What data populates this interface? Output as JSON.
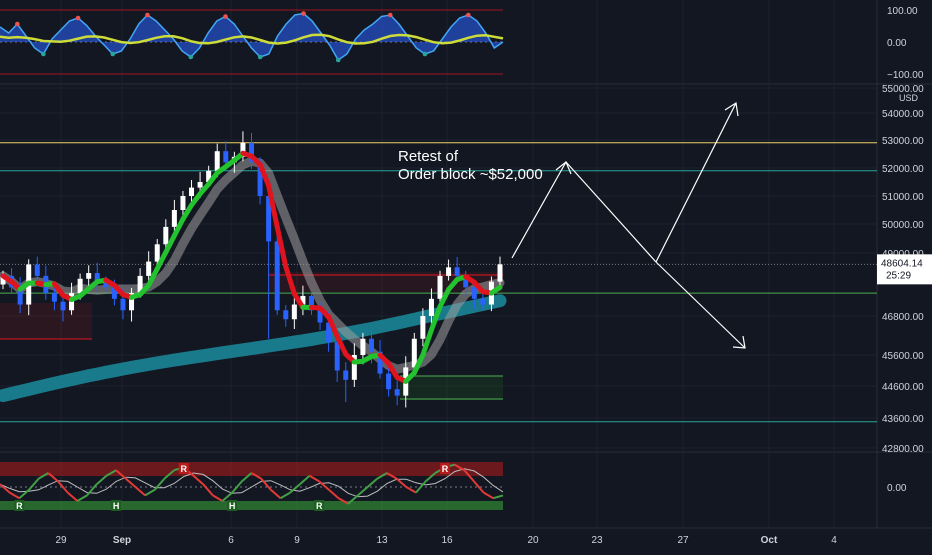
{
  "colors": {
    "background": "#131722",
    "up_candle": "#ffffff",
    "down_candle": "#2962ff",
    "resistance_line": "#f0d264",
    "teal_line": "#26a69a",
    "green_line": "#4caf50",
    "red_zone": "#b71c1c",
    "ribbon_green": "#22c32e",
    "ribbon_red": "#e0141e",
    "baseline_ribbon": "#1a8c9c",
    "price_tag_bg": "#ffffff"
  },
  "chart_data": [
    {
      "type": "area",
      "panel": "top-oscillator",
      "y_ticks": [
        "100.00",
        "0.00",
        "−100.00"
      ],
      "ylim": [
        -100,
        100
      ],
      "series_values": [
        50,
        30,
        60,
        20,
        -20,
        -40,
        10,
        40,
        70,
        80,
        55,
        20,
        -10,
        -40,
        -30,
        10,
        60,
        90,
        70,
        40,
        10,
        -30,
        -50,
        -20,
        30,
        70,
        85,
        60,
        20,
        -20,
        -50,
        -40,
        20,
        60,
        90,
        95,
        70,
        30,
        -10,
        -60,
        -40,
        10,
        40,
        60,
        85,
        90,
        60,
        20,
        -20,
        -40,
        -30,
        10,
        50,
        80,
        90,
        70,
        30,
        -20,
        0
      ]
    },
    {
      "type": "candlestick",
      "panel": "price",
      "unit": "USD",
      "y_ticks": [
        "55000.00",
        "54000.00",
        "53000.00",
        "52000.00",
        "51000.00",
        "50000.00",
        "49000.00",
        "46800.00",
        "45600.00",
        "44600.00",
        "43600.00",
        "42800.00"
      ],
      "ylim": [
        42800,
        55000
      ],
      "x_ticks": [
        "29",
        "Sep",
        "6",
        "9",
        "13",
        "16",
        "20",
        "23",
        "27",
        "Oct",
        "4"
      ],
      "last_price": "48604.14",
      "countdown": "25:29",
      "annotation": [
        "Retest of",
        "Order block ~$52,000"
      ],
      "resistance_level": 52900,
      "teal_level": 51900,
      "green_level": 47600,
      "support_level": 43500,
      "closes": [
        48200,
        47800,
        47200,
        48600,
        48200,
        47600,
        47300,
        47000,
        47600,
        48100,
        48300,
        48000,
        47800,
        47400,
        47000,
        47600,
        48200,
        48700,
        49300,
        49900,
        50500,
        51000,
        51300,
        51500,
        51900,
        52600,
        52200,
        52400,
        52900,
        52200,
        51000,
        49400,
        47000,
        46700,
        47200,
        47500,
        47000,
        46600,
        46000,
        45100,
        44800,
        45600,
        46100,
        45700,
        45000,
        44500,
        44300,
        45200,
        46100,
        46800,
        47400,
        48200,
        48500,
        48200,
        47800,
        47400,
        47200,
        48000,
        48604
      ]
    },
    {
      "type": "line",
      "panel": "bottom-oscillator",
      "y_ticks": [
        "0.00"
      ],
      "signal_markers": [
        "R",
        "H",
        "R",
        "H",
        "R",
        "R",
        "R"
      ],
      "series_values": [
        10,
        -20,
        -40,
        -10,
        30,
        50,
        20,
        -20,
        -50,
        -30,
        10,
        40,
        60,
        30,
        0,
        -30,
        -10,
        30,
        60,
        70,
        40,
        10,
        -30,
        -50,
        -20,
        20,
        50,
        30,
        -10,
        -40,
        -20,
        10,
        40,
        20,
        -10,
        -40,
        -60,
        -30,
        0,
        30,
        50,
        30,
        0,
        -20,
        20,
        50,
        70,
        80,
        60,
        20,
        -20,
        -40,
        -30
      ]
    }
  ]
}
